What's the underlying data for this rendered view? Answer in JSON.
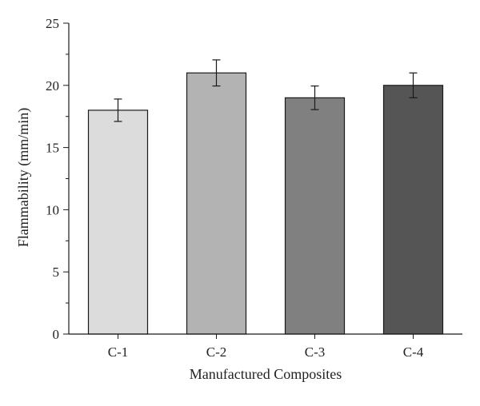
{
  "chart_data": {
    "type": "bar",
    "title": "",
    "xlabel": "Manufactured Composites",
    "ylabel": "Flammability (mm/min)",
    "categories": [
      "C-1",
      "C-2",
      "C-3",
      "C-4"
    ],
    "values": [
      18,
      21,
      19,
      20
    ],
    "error": [
      0.9,
      1.05,
      0.95,
      1.0
    ],
    "ylim": [
      0,
      25
    ],
    "yticks": [
      "0",
      "5",
      "10",
      "15",
      "20",
      "25"
    ],
    "grid": false,
    "legend": "none",
    "bar_colors": [
      "#dcdcdc",
      "#b3b3b3",
      "#808080",
      "#555555"
    ],
    "edge_color": "#1a1a1a"
  }
}
